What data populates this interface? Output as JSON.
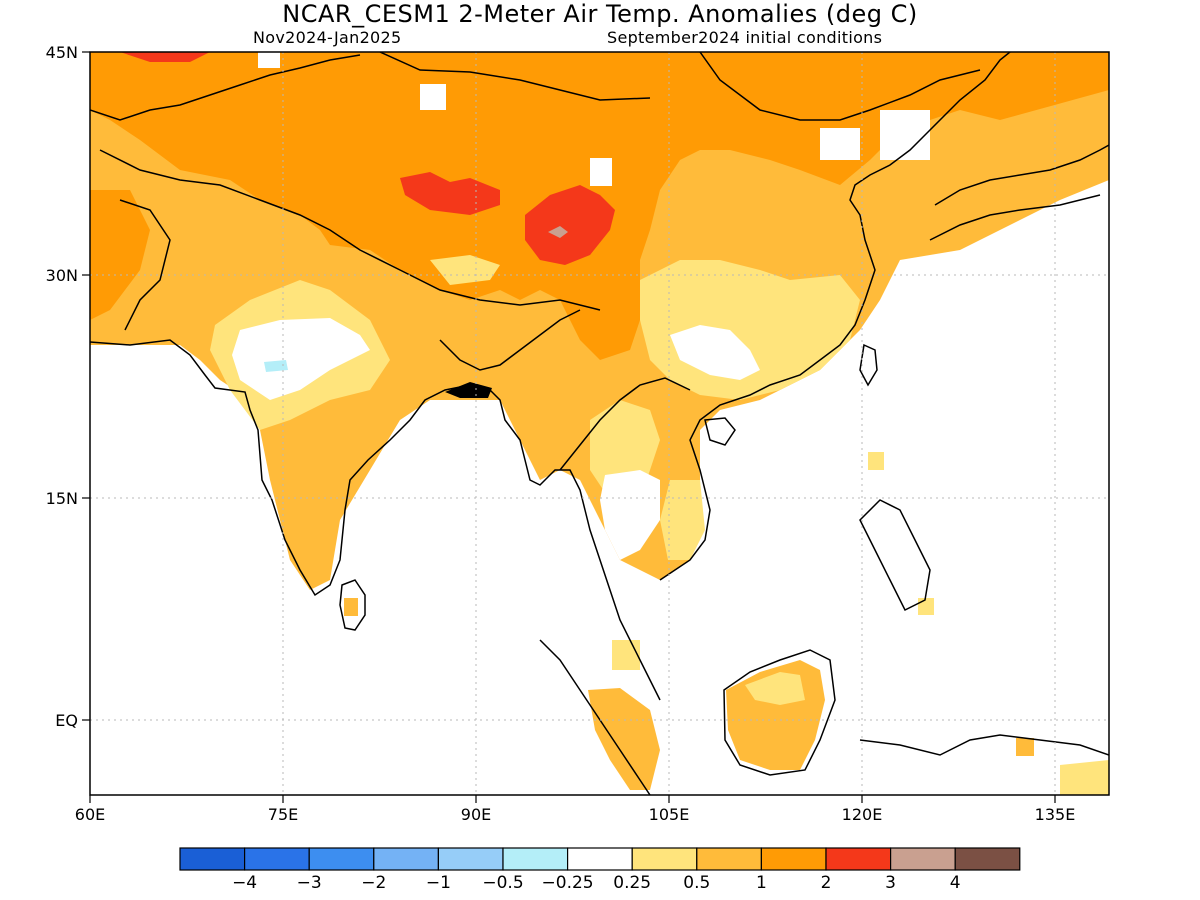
{
  "title": "NCAR_CESM1 2-Meter Air Temp. Anomalies (deg C)",
  "period": "Nov2024-Jan2025",
  "initial_conditions": "September2024 initial conditions",
  "lat_labels": [
    "45N",
    "30N",
    "15N",
    "EQ"
  ],
  "lon_labels": [
    "60E",
    "75E",
    "90E",
    "105E",
    "120E",
    "135E"
  ],
  "colorbar": {
    "colors": [
      "#1a5fd6",
      "#2a73e8",
      "#3d8ef0",
      "#74b2f5",
      "#96cdf8",
      "#b4eef8",
      "#ffffff",
      "#ffe47c",
      "#ffbb3a",
      "#ff9b05",
      "#f4381a",
      "#c9a090",
      "#7b5044"
    ],
    "labels": [
      "-4",
      "-3",
      "-2",
      "-1",
      "-0.5",
      "-0.25",
      "0.25",
      "0.5",
      "1",
      "2",
      "3",
      "4"
    ]
  }
}
